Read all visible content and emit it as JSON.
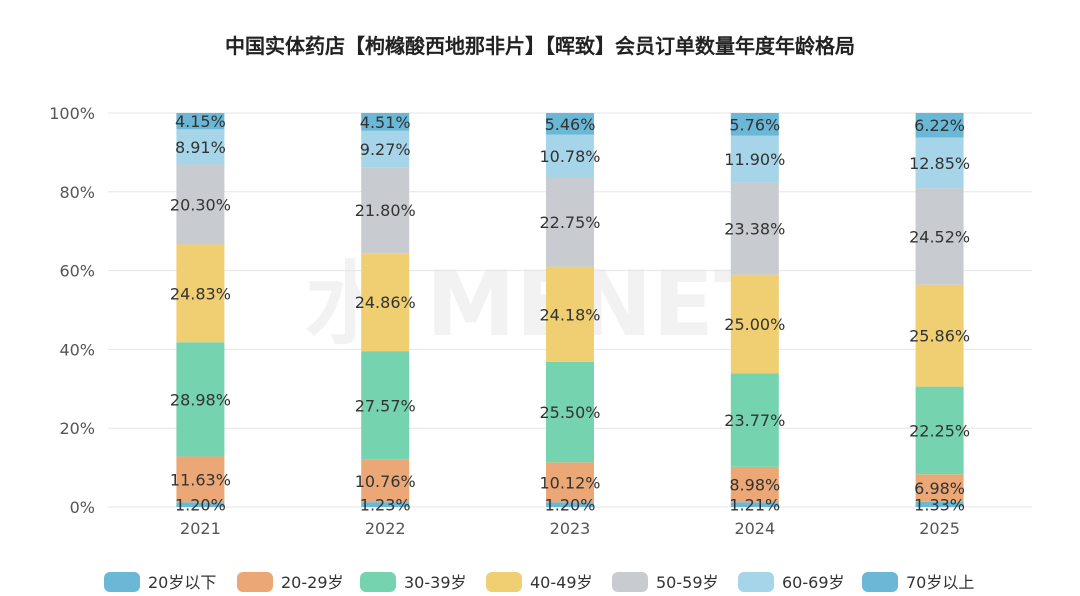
{
  "chart_data": {
    "type": "bar",
    "stacked": true,
    "percent": true,
    "title": "中国实体药店【枸橼酸西地那非片】【晖致】会员订单数量年度年龄格局",
    "categories": [
      "2021",
      "2022",
      "2023",
      "2024",
      "2025"
    ],
    "ylim": [
      0,
      100
    ],
    "yticks": [
      "0%",
      "20%",
      "40%",
      "60%",
      "80%",
      "100%"
    ],
    "legend_position": "bottom",
    "grid": true,
    "series": [
      {
        "name": "20岁以下",
        "color": "#6ab7d6",
        "values": [
          1.2,
          1.23,
          1.2,
          1.21,
          1.33
        ],
        "labels": [
          "1.20%",
          "1.23%",
          "1.20%",
          "1.21%",
          "1.33%"
        ]
      },
      {
        "name": "20-29岁",
        "color": "#eba876",
        "values": [
          11.63,
          10.76,
          10.12,
          8.98,
          6.98
        ],
        "labels": [
          "11.63%",
          "10.76%",
          "10.12%",
          "8.98%",
          "6.98%"
        ]
      },
      {
        "name": "30-39岁",
        "color": "#76d3b0",
        "values": [
          28.98,
          27.57,
          25.5,
          23.77,
          22.25
        ],
        "labels": [
          "28.98%",
          "27.57%",
          "25.50%",
          "23.77%",
          "22.25%"
        ]
      },
      {
        "name": "40-49岁",
        "color": "#efcf72",
        "values": [
          24.83,
          24.86,
          24.18,
          25.0,
          25.86
        ],
        "labels": [
          "24.83%",
          "24.86%",
          "24.18%",
          "25.00%",
          "25.86%"
        ]
      },
      {
        "name": "50-59岁",
        "color": "#c8cbd0",
        "values": [
          20.3,
          21.8,
          22.75,
          23.38,
          24.52
        ],
        "labels": [
          "20.30%",
          "21.80%",
          "22.75%",
          "23.38%",
          "24.52%"
        ]
      },
      {
        "name": "60-69岁",
        "color": "#a6d4e8",
        "values": [
          8.91,
          9.27,
          10.78,
          11.9,
          12.85
        ],
        "labels": [
          "8.91%",
          "9.27%",
          "10.78%",
          "11.90%",
          "12.85%"
        ]
      },
      {
        "name": "70岁以上",
        "color": "#6ab7d6",
        "values": [
          4.15,
          4.51,
          5.46,
          5.76,
          6.22
        ],
        "labels": [
          "4.15%",
          "4.51%",
          "5.46%",
          "5.76%",
          "6.22%"
        ]
      }
    ]
  }
}
